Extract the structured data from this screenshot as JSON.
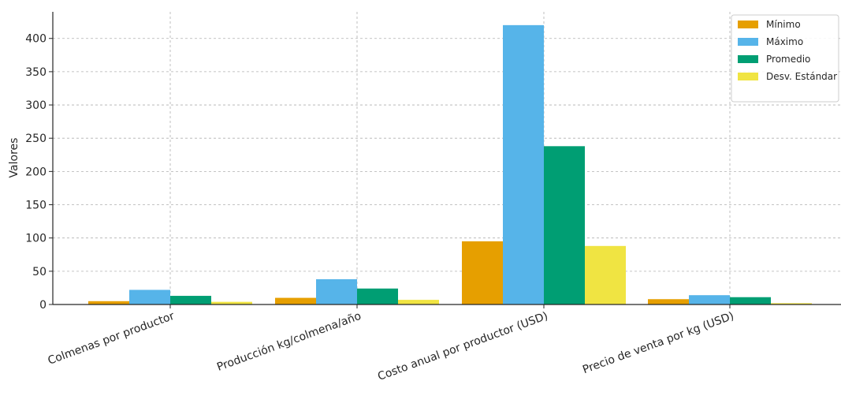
{
  "chart_data": {
    "type": "bar",
    "title": "",
    "xlabel": "",
    "ylabel": "Valores",
    "ylim": [
      0,
      440
    ],
    "yticks": [
      0,
      50,
      100,
      150,
      200,
      250,
      300,
      350,
      400
    ],
    "grid": true,
    "legend_position": "top-right",
    "categories": [
      "Colmenas por productor",
      "Producción kg/colmena/año",
      "Costo anual por productor (USD)",
      "Precio de venta por kg (USD)"
    ],
    "series": [
      {
        "name": "Mínimo",
        "color": "#E69F00",
        "values": [
          5,
          10,
          95,
          8
        ]
      },
      {
        "name": "Máximo",
        "color": "#56B4E9",
        "values": [
          22,
          38,
          420,
          14
        ]
      },
      {
        "name": "Promedio",
        "color": "#009E73",
        "values": [
          13,
          24,
          238,
          11
        ]
      },
      {
        "name": "Desv. Estándar",
        "color": "#F0E442",
        "values": [
          4,
          7,
          88,
          2
        ]
      }
    ]
  }
}
